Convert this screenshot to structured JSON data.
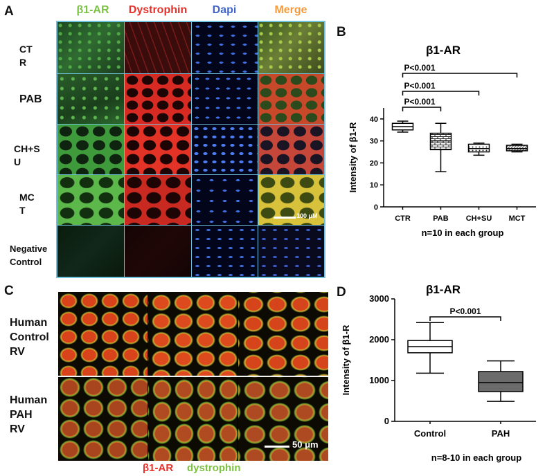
{
  "panels": {
    "a": "A",
    "b": "B",
    "c": "C",
    "d": "D"
  },
  "panelA": {
    "headers": [
      {
        "text": "β1-AR",
        "color": "#7cc242"
      },
      {
        "text": "Dystrophin",
        "color": "#e8302a"
      },
      {
        "text": "Dapi",
        "color": "#3f63c9"
      },
      {
        "text": "Merge",
        "color": "#f39a3b"
      }
    ],
    "rows": [
      {
        "label1": "CT",
        "label2": "R"
      },
      {
        "label1": "PAB",
        "label2": ""
      },
      {
        "label1": "CH+S",
        "label2": "U"
      },
      {
        "label1": "MC",
        "label2": "T"
      },
      {
        "label1": "Negative",
        "label2": "Control"
      }
    ],
    "scalebar": "100 μM"
  },
  "panelC": {
    "rows": [
      {
        "label1": "Human",
        "label2": "Control",
        "label3": "RV"
      },
      {
        "label1": "Human",
        "label2": "PAH",
        "label3": "RV"
      }
    ],
    "scalebar": "50 μm",
    "legend": [
      {
        "text": "β1-AR",
        "color": "#e8302a"
      },
      {
        "text": "dystrophin",
        "color": "#7cc242"
      }
    ]
  },
  "chart_data": [
    {
      "type": "boxplot",
      "title": "β1-AR",
      "ylabel": "Intensity of β1-R",
      "xlabel": "n=10 in each group",
      "ylim": [
        0,
        45
      ],
      "yticks": [
        0,
        10,
        20,
        30,
        40
      ],
      "categories": [
        "CTR",
        "PAB",
        "CH+SU",
        "MCT"
      ],
      "boxes": [
        {
          "min": 34,
          "q1": 35,
          "median": 36.5,
          "q3": 38,
          "max": 39,
          "fill": "white"
        },
        {
          "min": 16,
          "q1": 26,
          "median": 30,
          "q3": 33.5,
          "max": 38,
          "fill": "brick"
        },
        {
          "min": 23.5,
          "q1": 25,
          "median": 26.5,
          "q3": 28.5,
          "max": 29,
          "fill": "dots"
        },
        {
          "min": 25,
          "q1": 25.5,
          "median": 26.5,
          "q3": 28,
          "max": 28.5,
          "fill": "hatch"
        }
      ],
      "comparisons": [
        {
          "from": "CTR",
          "to": "MCT",
          "label": "P<0.001"
        },
        {
          "from": "CTR",
          "to": "CH+SU",
          "label": "P<0.001"
        },
        {
          "from": "CTR",
          "to": "PAB",
          "label": "P<0.001"
        }
      ]
    },
    {
      "type": "boxplot",
      "title": "β1-AR",
      "ylabel": "Intensity of β1-R",
      "xlabel": "n=8-10 in each group",
      "ylim": [
        0,
        3000
      ],
      "yticks": [
        0,
        1000,
        2000,
        3000
      ],
      "categories": [
        "Control",
        "PAH"
      ],
      "boxes": [
        {
          "min": 1180,
          "q1": 1680,
          "median": 1830,
          "q3": 1980,
          "max": 2420,
          "fill": "white"
        },
        {
          "min": 490,
          "q1": 730,
          "median": 950,
          "q3": 1220,
          "max": 1480,
          "fill": "gray"
        }
      ],
      "comparisons": [
        {
          "from": "Control",
          "to": "PAH",
          "label": "P<0.001"
        }
      ]
    }
  ]
}
